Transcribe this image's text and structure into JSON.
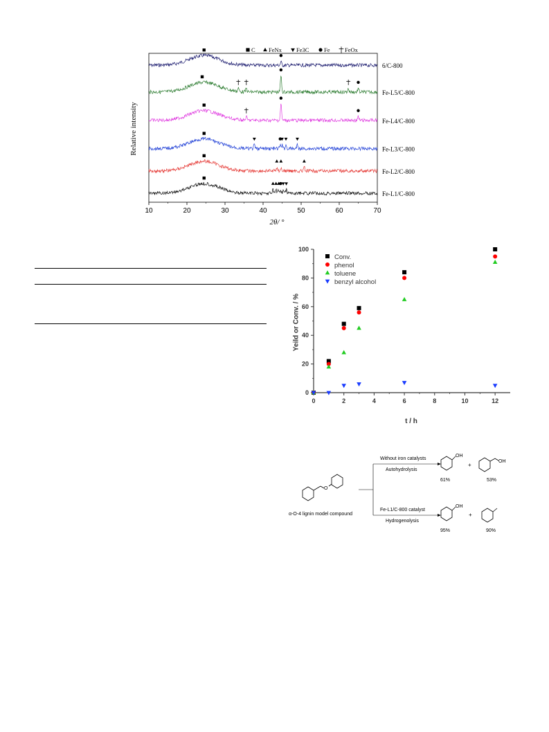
{
  "chart_data": [
    {
      "type": "line",
      "title": "",
      "xlabel": "2θ/ °",
      "ylabel": "Relative intensity",
      "xlim": [
        10,
        70
      ],
      "xticks": [
        10,
        20,
        30,
        40,
        50,
        60,
        70
      ],
      "grid": false,
      "legend": {
        "placement": "top-center",
        "entries": [
          {
            "marker": "square",
            "label": "C"
          },
          {
            "marker": "triangle-up",
            "label": "FeNx"
          },
          {
            "marker": "triangle-down",
            "label": "Fe3C"
          },
          {
            "marker": "circle",
            "label": "Fe"
          },
          {
            "marker": "cross",
            "label": "FeOx"
          }
        ]
      },
      "series": [
        {
          "name": "6/C-800",
          "color": "#1a1a6e",
          "baseline": 0.92,
          "peaks": [
            {
              "x": 24.5,
              "marker": "square"
            },
            {
              "x": 44.7,
              "marker": "circle"
            }
          ]
        },
        {
          "name": "Fe-L5/C-800",
          "color": "#2e7d32",
          "baseline": 0.74,
          "peaks": [
            {
              "x": 24,
              "marker": "square"
            },
            {
              "x": 33.5,
              "marker": "cross"
            },
            {
              "x": 35.6,
              "marker": "cross"
            },
            {
              "x": 44.7,
              "marker": "circle"
            },
            {
              "x": 62.4,
              "marker": "cross"
            },
            {
              "x": 65,
              "marker": "circle"
            }
          ]
        },
        {
          "name": "Fe-L4/C-800",
          "color": "#e040e0",
          "baseline": 0.55,
          "peaks": [
            {
              "x": 24.5,
              "marker": "square"
            },
            {
              "x": 35.6,
              "marker": "cross"
            },
            {
              "x": 44.7,
              "marker": "circle"
            },
            {
              "x": 65,
              "marker": "circle"
            }
          ]
        },
        {
          "name": "Fe-L3/C-800",
          "color": "#1f3fd6",
          "baseline": 0.36,
          "peaks": [
            {
              "x": 24.5,
              "marker": "square"
            },
            {
              "x": 37.7,
              "marker": "triangle-down"
            },
            {
              "x": 44.5,
              "marker": "circle"
            },
            {
              "x": 45,
              "marker": "triangle-down"
            },
            {
              "x": 46,
              "marker": "triangle-down"
            },
            {
              "x": 49,
              "marker": "triangle-down"
            }
          ]
        },
        {
          "name": "Fe-L2/C-800",
          "color": "#e53935",
          "baseline": 0.21,
          "peaks": [
            {
              "x": 24.5,
              "marker": "square"
            },
            {
              "x": 43.6,
              "marker": "triangle-up"
            },
            {
              "x": 44.7,
              "marker": "triangle-up"
            },
            {
              "x": 50.8,
              "marker": "triangle-up"
            }
          ]
        },
        {
          "name": "Fe-L1/C-800",
          "color": "#111111",
          "baseline": 0.06,
          "peaks": [
            {
              "x": 24.5,
              "marker": "square"
            },
            {
              "x": 42.6,
              "marker": "triangle-up"
            },
            {
              "x": 43.4,
              "marker": "triangle-up"
            },
            {
              "x": 44.1,
              "marker": "triangle-up"
            },
            {
              "x": 44.6,
              "marker": "circle"
            },
            {
              "x": 45.3,
              "marker": "triangle-down"
            },
            {
              "x": 46.1,
              "marker": "triangle-down"
            }
          ]
        }
      ]
    },
    {
      "type": "scatter",
      "title": "",
      "xlabel": "t / h",
      "ylabel": "Yeild or Conv. / %",
      "xlim": [
        0,
        13
      ],
      "ylim": [
        0,
        100
      ],
      "xticks": [
        0,
        2,
        4,
        6,
        8,
        10,
        12
      ],
      "yticks": [
        0,
        20,
        40,
        60,
        80,
        100
      ],
      "grid": false,
      "legend": "top-left",
      "x": [
        0,
        1,
        2,
        3,
        6,
        12
      ],
      "series": [
        {
          "name": "Conv.",
          "color": "#000000",
          "marker": "square",
          "values": [
            0,
            22,
            48,
            59,
            84,
            100
          ]
        },
        {
          "name": "phenol",
          "color": "#ff0000",
          "marker": "circle",
          "values": [
            0,
            20,
            45,
            56,
            80,
            95
          ]
        },
        {
          "name": "toluene",
          "color": "#22cc22",
          "marker": "triangle-up",
          "values": [
            0,
            18,
            28,
            45,
            65,
            91
          ]
        },
        {
          "name": "benzyl alcohol",
          "color": "#1a3cff",
          "marker": "triangle-down",
          "values": [
            0,
            0,
            5,
            6,
            7,
            5
          ]
        }
      ]
    }
  ],
  "scheme": {
    "substrate_label": "α-O-4 lignin model compound",
    "route_top_above": "Without iron catalysts",
    "route_top_below": "Autohydrolysis",
    "route_bottom_above": "Fe-L1/C-800 catalyst",
    "route_bottom_below": "Hydrogenolysis",
    "oh_label": "OH",
    "o_label": "O",
    "plus": "+",
    "top_yields": [
      "61%",
      "53%"
    ],
    "bottom_yields": [
      "95%",
      "90%"
    ]
  }
}
